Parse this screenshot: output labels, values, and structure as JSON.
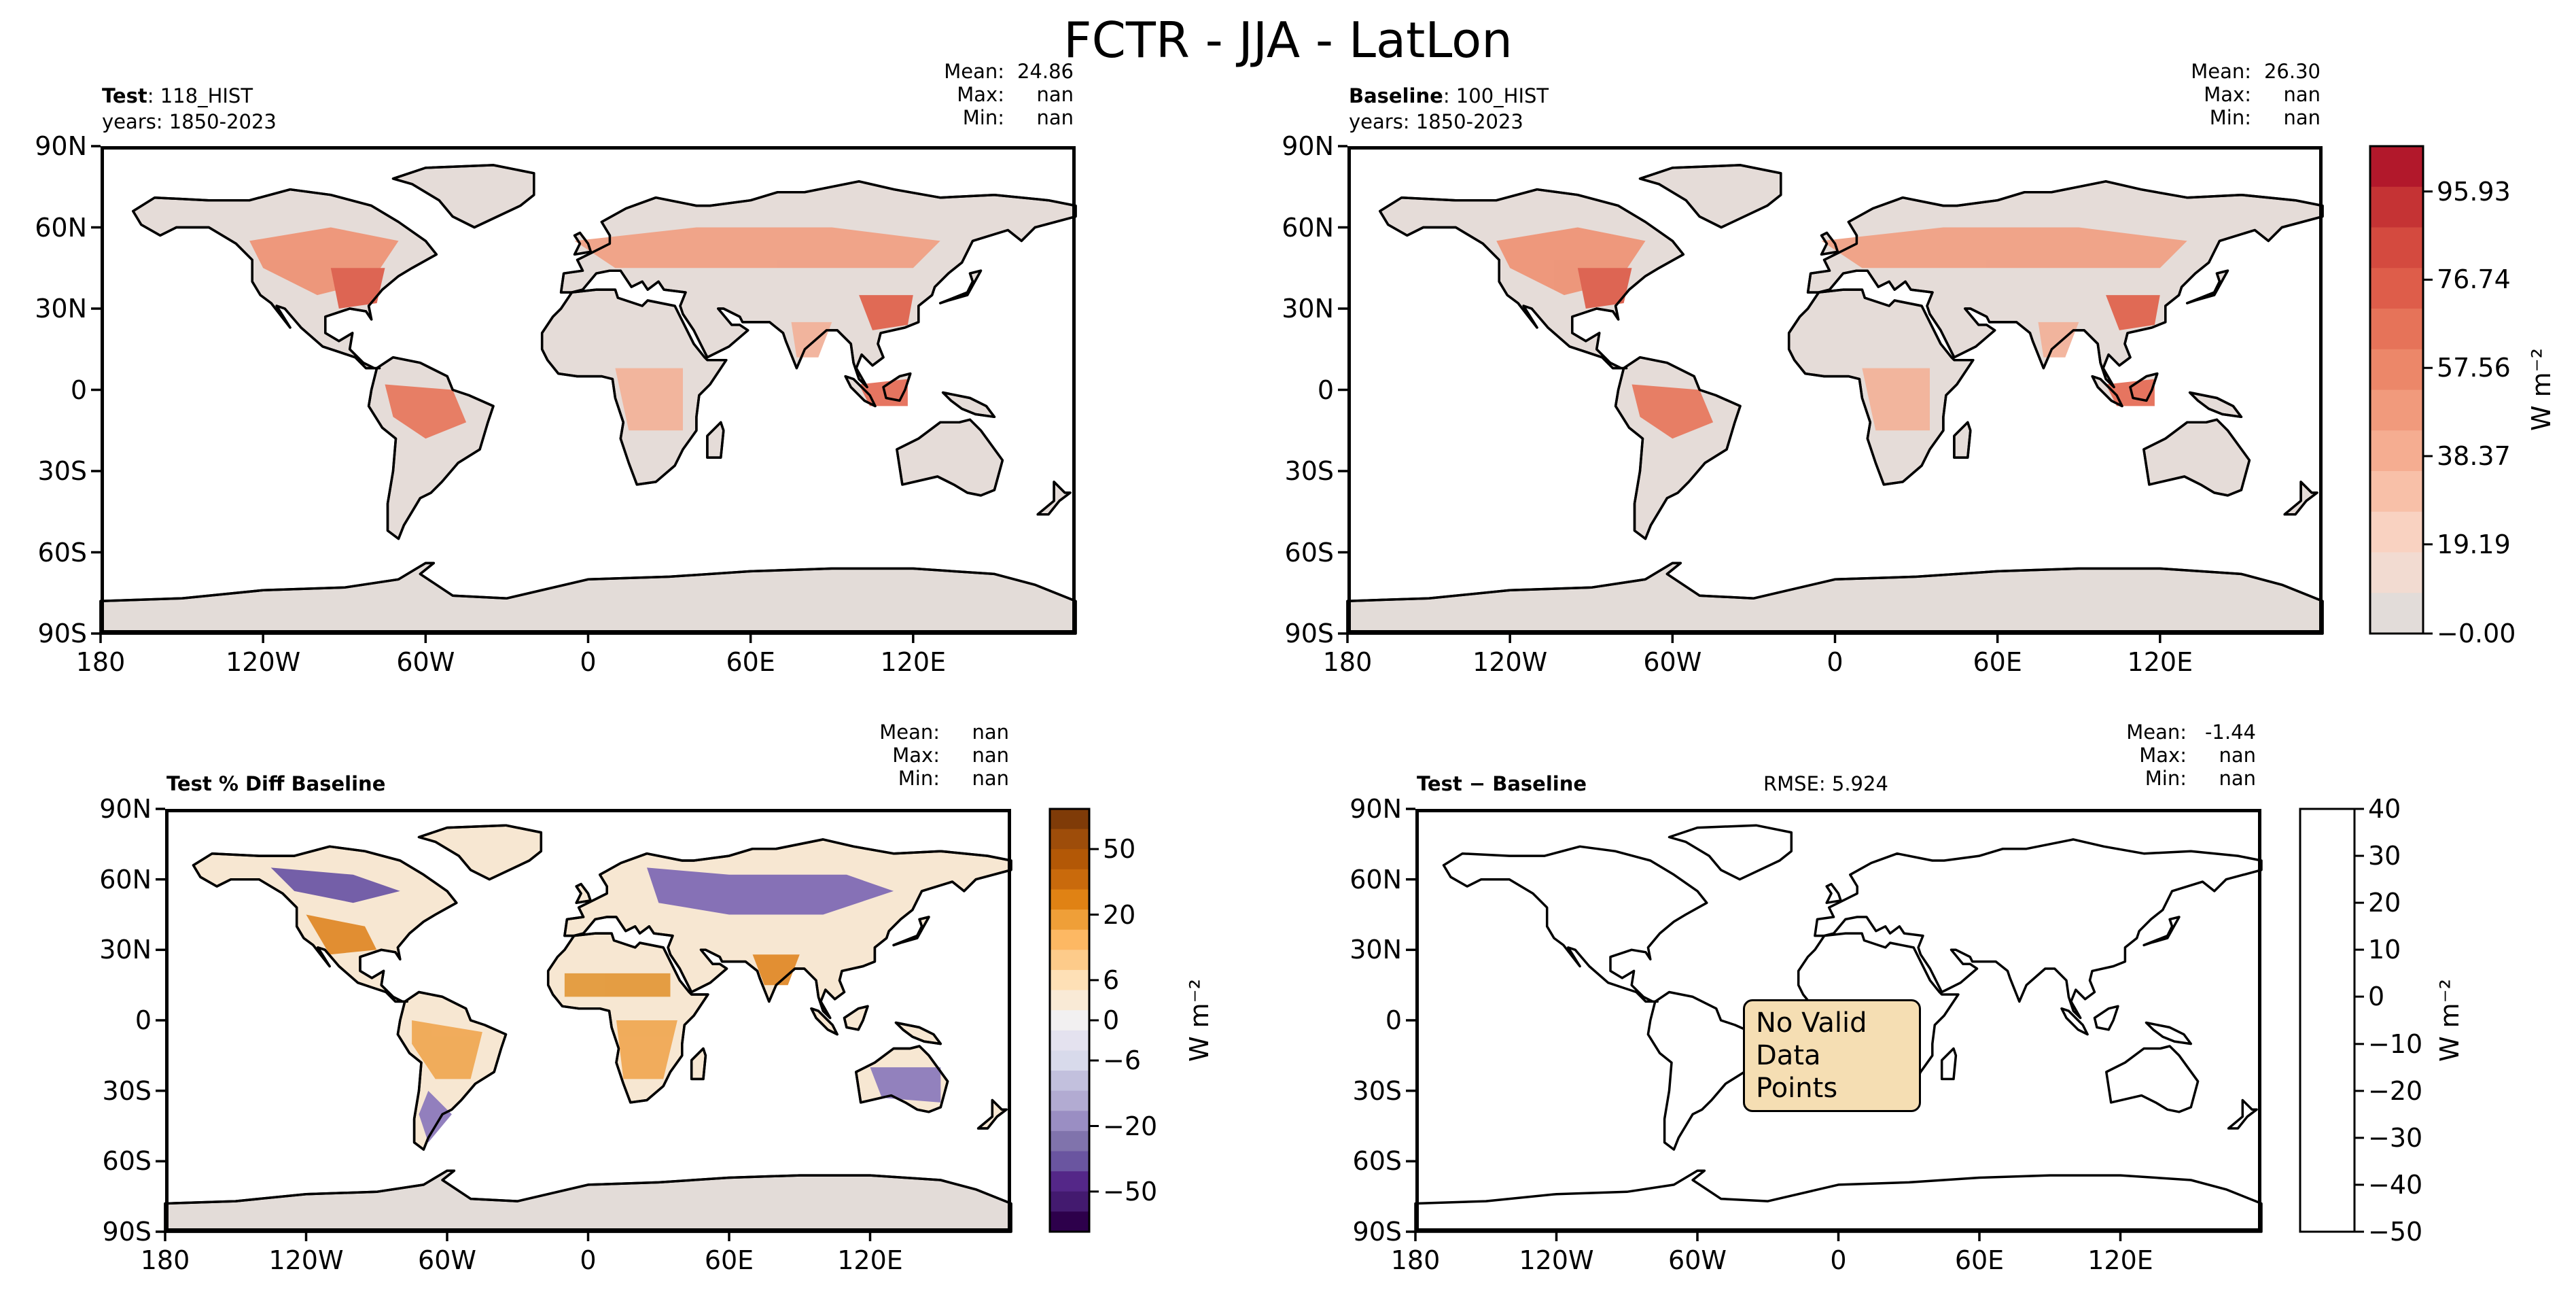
{
  "figure": {
    "title": "FCTR - JJA - LatLon"
  },
  "panels": {
    "test": {
      "label_bold": "Test",
      "label_rest": ": 118_HIST",
      "years": "years: 1850-2023",
      "stats": [
        {
          "k": "Mean:",
          "v": "24.86"
        },
        {
          "k": "Max:",
          "v": "nan"
        },
        {
          "k": "Min:",
          "v": "nan"
        }
      ]
    },
    "baseline": {
      "label_bold": "Baseline",
      "label_rest": ": 100_HIST",
      "years": "years: 1850-2023",
      "stats": [
        {
          "k": "Mean:",
          "v": "26.30"
        },
        {
          "k": "Max:",
          "v": "nan"
        },
        {
          "k": "Min:",
          "v": "nan"
        }
      ]
    },
    "pctdiff": {
      "label_bold": "Test % Diff Baseline",
      "stats": [
        {
          "k": "Mean:",
          "v": "nan"
        },
        {
          "k": "Max:",
          "v": "nan"
        },
        {
          "k": "Min:",
          "v": "nan"
        }
      ]
    },
    "diff": {
      "label_bold": "Test − Baseline",
      "rmse": "RMSE: 5.924",
      "stats": [
        {
          "k": "Mean:",
          "v": "-1.44"
        },
        {
          "k": "Max:",
          "v": "nan"
        },
        {
          "k": "Min:",
          "v": "nan"
        }
      ],
      "nodata_line1": "No Valid",
      "nodata_line2": "Data Points"
    }
  },
  "axes": {
    "lat_ticks": [
      "90N",
      "60N",
      "30N",
      "0",
      "30S",
      "60S",
      "90S"
    ],
    "lon_ticks": [
      "180",
      "120W",
      "60W",
      "0",
      "60E",
      "120E"
    ]
  },
  "colorbars": {
    "abs": {
      "unit": "W m⁻²",
      "ticks": [
        "95.93",
        "76.74",
        "57.56",
        "38.37",
        "19.19",
        "−0.00"
      ],
      "colors": [
        "#b2182b",
        "#c53334",
        "#d44a3f",
        "#de5d4a",
        "#e67359",
        "#ec8769",
        "#f19a7c",
        "#f5ad91",
        "#f8c0a8",
        "#f9d2c1",
        "#f2dbd1",
        "#e2dcd9"
      ]
    },
    "pct": {
      "unit": "W m⁻²",
      "ticks": [
        "50",
        "20",
        "6",
        "0",
        "−6",
        "−20",
        "−50"
      ],
      "colors": [
        "#7f3b08",
        "#9e4d0a",
        "#b35806",
        "#c96a0c",
        "#e08214",
        "#ef9f38",
        "#fdb863",
        "#fdcb8a",
        "#fee0b6",
        "#f9ead6",
        "#f2f0f1",
        "#e4e2ef",
        "#d8daeb",
        "#c2c0dd",
        "#b2abd2",
        "#9a8ec3",
        "#8073ac",
        "#6a55a0",
        "#542788",
        "#431a6f",
        "#2d004b"
      ]
    },
    "diff": {
      "unit": "W m⁻²",
      "ticks": [
        "40",
        "30",
        "20",
        "10",
        "0",
        "−10",
        "−20",
        "−30",
        "−40",
        "−50"
      ]
    }
  },
  "chart_data": [
    {
      "type": "heatmap",
      "title": "Test: 118_HIST",
      "subtitle": "years: 1850-2023",
      "projection": "PlateCarree lat-lon",
      "xlim": [
        -180,
        180
      ],
      "ylim": [
        -90,
        90
      ],
      "stats": {
        "mean": 24.86,
        "max": "nan",
        "min": "nan"
      },
      "colorbar": {
        "unit": "W m^-2",
        "range": [
          0,
          100
        ],
        "ticks": [
          -0.0,
          19.19,
          38.37,
          57.56,
          76.74,
          95.93
        ]
      }
    },
    {
      "type": "heatmap",
      "title": "Baseline: 100_HIST",
      "subtitle": "years: 1850-2023",
      "projection": "PlateCarree lat-lon",
      "xlim": [
        -180,
        180
      ],
      "ylim": [
        -90,
        90
      ],
      "stats": {
        "mean": 26.3,
        "max": "nan",
        "min": "nan"
      },
      "colorbar": {
        "unit": "W m^-2",
        "range": [
          0,
          100
        ],
        "ticks": [
          -0.0,
          19.19,
          38.37,
          57.56,
          76.74,
          95.93
        ]
      }
    },
    {
      "type": "heatmap",
      "title": "Test % Diff Baseline",
      "projection": "PlateCarree lat-lon",
      "xlim": [
        -180,
        180
      ],
      "ylim": [
        -90,
        90
      ],
      "stats": {
        "mean": "nan",
        "max": "nan",
        "min": "nan"
      },
      "colorbar": {
        "unit": "W m^-2",
        "range": [
          -75,
          75
        ],
        "ticks": [
          -50,
          -20,
          -6,
          0,
          6,
          20,
          50
        ]
      }
    },
    {
      "type": "heatmap",
      "title": "Test − Baseline",
      "rmse": 5.924,
      "projection": "PlateCarree lat-lon",
      "xlim": [
        -180,
        180
      ],
      "ylim": [
        -90,
        90
      ],
      "stats": {
        "mean": -1.44,
        "max": "nan",
        "min": "nan"
      },
      "annotation": "No Valid Data Points",
      "colorbar": {
        "unit": "W m^-2",
        "range": [
          -50,
          40
        ],
        "ticks": [
          -50,
          -40,
          -30,
          -20,
          -10,
          0,
          10,
          20,
          30,
          40
        ]
      }
    }
  ]
}
